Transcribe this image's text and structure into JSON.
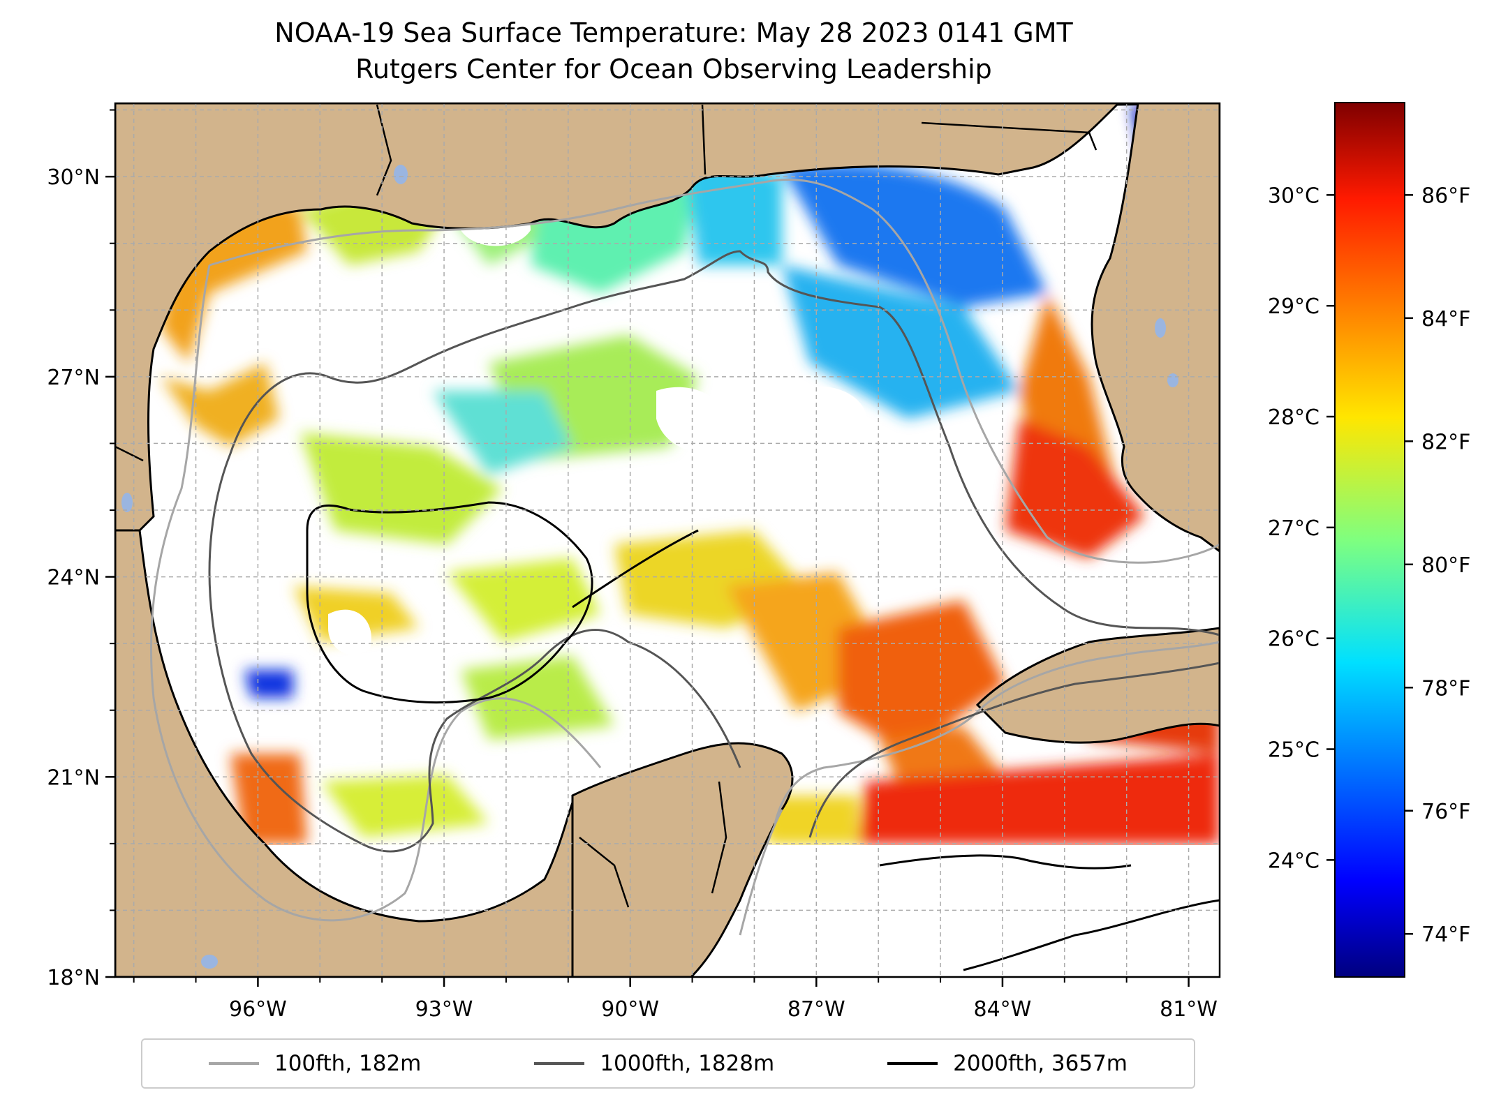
{
  "title": {
    "line1": "NOAA-19 Sea Surface Temperature: May 28 2023 0141 GMT",
    "line2": "Rutgers Center for Ocean Observing Leadership"
  },
  "map": {
    "lon_range": [
      -98.3,
      -80.5
    ],
    "lat_range": [
      18.0,
      31.1
    ],
    "lon_ticks": [
      {
        "value": -96,
        "label": "96°W"
      },
      {
        "value": -93,
        "label": "93°W"
      },
      {
        "value": -90,
        "label": "90°W"
      },
      {
        "value": -87,
        "label": "87°W"
      },
      {
        "value": -84,
        "label": "84°W"
      },
      {
        "value": -81,
        "label": "81°W"
      }
    ],
    "lat_ticks": [
      {
        "value": 18,
        "label": "18°N"
      },
      {
        "value": 21,
        "label": "21°N"
      },
      {
        "value": 24,
        "label": "24°N"
      },
      {
        "value": 27,
        "label": "27°N"
      },
      {
        "value": 30,
        "label": "30°N"
      }
    ],
    "gridlines": true,
    "land_color": "#d2b48c",
    "water_body_color": "#9ab5e0"
  },
  "colorbar": {
    "range_f": [
      73.3,
      87.5
    ],
    "colormap": "jet",
    "fahrenheit_ticks": [
      {
        "value": 74,
        "label": "74°F"
      },
      {
        "value": 76,
        "label": "76°F"
      },
      {
        "value": 78,
        "label": "78°F"
      },
      {
        "value": 80,
        "label": "80°F"
      },
      {
        "value": 82,
        "label": "82°F"
      },
      {
        "value": 84,
        "label": "84°F"
      },
      {
        "value": 86,
        "label": "86°F"
      }
    ],
    "celsius_ticks": [
      {
        "value": 24,
        "label": "24°C"
      },
      {
        "value": 25,
        "label": "25°C"
      },
      {
        "value": 26,
        "label": "26°C"
      },
      {
        "value": 27,
        "label": "27°C"
      },
      {
        "value": 28,
        "label": "28°C"
      },
      {
        "value": 29,
        "label": "29°C"
      },
      {
        "value": 30,
        "label": "30°C"
      }
    ]
  },
  "legend": {
    "items": [
      {
        "label": "100fth, 182m",
        "color": "#a6a6a6"
      },
      {
        "label": "1000fth, 1828m",
        "color": "#555555"
      },
      {
        "label": "2000fth, 3657m",
        "color": "#000000"
      }
    ]
  }
}
